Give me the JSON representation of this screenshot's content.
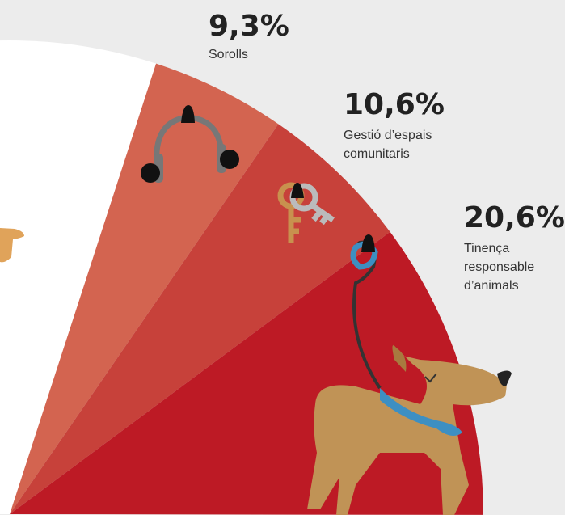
{
  "chart_data": {
    "type": "pie",
    "categories": [
      "Sorolls",
      "Gestió d’espais comunitaris",
      "Tinença responsable d’animals"
    ],
    "values": [
      9.3,
      10.6,
      20.6
    ],
    "value_labels": [
      "9,3%",
      "10,6%",
      "20,6%"
    ],
    "colors": [
      "#d36450",
      "#c7413a",
      "#bd1a25"
    ]
  }
}
